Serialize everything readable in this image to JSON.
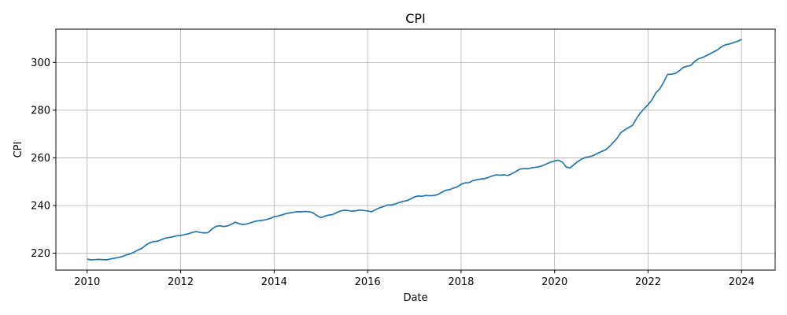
{
  "chart_data": {
    "type": "line",
    "title": "CPI",
    "xlabel": "Date",
    "ylabel": "CPI",
    "xlim": [
      2009.33,
      2024.72
    ],
    "ylim": [
      212.9,
      314.0
    ],
    "xticks": [
      2010,
      2012,
      2014,
      2016,
      2018,
      2020,
      2022,
      2024
    ],
    "yticks": [
      220,
      240,
      260,
      280,
      300
    ],
    "grid": true,
    "line_color": "#1f77b4",
    "series": [
      {
        "x": [
          2010.0,
          2010.083,
          2010.167,
          2010.25,
          2010.333,
          2010.417,
          2010.5,
          2010.583,
          2010.667,
          2010.75,
          2010.833,
          2010.917,
          2011.0,
          2011.083,
          2011.167,
          2011.25,
          2011.333,
          2011.417,
          2011.5,
          2011.583,
          2011.667,
          2011.75,
          2011.833,
          2011.917,
          2012.0,
          2012.083,
          2012.167,
          2012.25,
          2012.333,
          2012.417,
          2012.5,
          2012.583,
          2012.667,
          2012.75,
          2012.833,
          2012.917,
          2013.0,
          2013.083,
          2013.167,
          2013.25,
          2013.333,
          2013.417,
          2013.5,
          2013.583,
          2013.667,
          2013.75,
          2013.833,
          2013.917,
          2014.0,
          2014.083,
          2014.167,
          2014.25,
          2014.333,
          2014.417,
          2014.5,
          2014.583,
          2014.667,
          2014.75,
          2014.833,
          2014.917,
          2015.0,
          2015.083,
          2015.167,
          2015.25,
          2015.333,
          2015.417,
          2015.5,
          2015.583,
          2015.667,
          2015.75,
          2015.833,
          2015.917,
          2016.0,
          2016.083,
          2016.167,
          2016.25,
          2016.333,
          2016.417,
          2016.5,
          2016.583,
          2016.667,
          2016.75,
          2016.833,
          2016.917,
          2017.0,
          2017.083,
          2017.167,
          2017.25,
          2017.333,
          2017.417,
          2017.5,
          2017.583,
          2017.667,
          2017.75,
          2017.833,
          2017.917,
          2018.0,
          2018.083,
          2018.167,
          2018.25,
          2018.333,
          2018.417,
          2018.5,
          2018.583,
          2018.667,
          2018.75,
          2018.833,
          2018.917,
          2019.0,
          2019.083,
          2019.167,
          2019.25,
          2019.333,
          2019.417,
          2019.5,
          2019.583,
          2019.667,
          2019.75,
          2019.833,
          2019.917,
          2020.0,
          2020.083,
          2020.167,
          2020.25,
          2020.333,
          2020.417,
          2020.5,
          2020.583,
          2020.667,
          2020.75,
          2020.833,
          2020.917,
          2021.0,
          2021.083,
          2021.167,
          2021.25,
          2021.333,
          2021.417,
          2021.5,
          2021.583,
          2021.667,
          2021.75,
          2021.833,
          2021.917,
          2022.0,
          2022.083,
          2022.167,
          2022.25,
          2022.333,
          2022.417,
          2022.5,
          2022.583,
          2022.667,
          2022.75,
          2022.833,
          2022.917,
          2023.0,
          2023.083,
          2023.167,
          2023.25,
          2023.333,
          2023.417,
          2023.5,
          2023.583,
          2023.667,
          2023.75,
          2023.833,
          2023.917,
          2024.0
        ],
        "values": [
          217.5,
          217.2,
          217.3,
          217.4,
          217.3,
          217.2,
          217.6,
          217.9,
          218.2,
          218.6,
          219.2,
          219.7,
          220.4,
          221.3,
          222.0,
          223.3,
          224.3,
          224.9,
          225.0,
          225.6,
          226.3,
          226.6,
          226.9,
          227.3,
          227.4,
          227.8,
          228.2,
          228.7,
          229.1,
          228.7,
          228.5,
          228.6,
          230.1,
          231.2,
          231.5,
          231.2,
          231.4,
          232.1,
          233.0,
          232.4,
          232.0,
          232.3,
          232.8,
          233.3,
          233.6,
          233.8,
          234.1,
          234.6,
          235.3,
          235.6,
          236.1,
          236.6,
          236.9,
          237.2,
          237.4,
          237.4,
          237.5,
          237.4,
          236.9,
          235.8,
          234.9,
          235.5,
          236.0,
          236.2,
          237.0,
          237.7,
          238.0,
          237.9,
          237.6,
          237.8,
          238.1,
          237.9,
          237.7,
          237.4,
          238.2,
          239.0,
          239.5,
          240.2,
          240.2,
          240.6,
          241.2,
          241.7,
          242.0,
          242.7,
          243.6,
          244.0,
          243.9,
          244.2,
          244.1,
          244.2,
          244.6,
          245.5,
          246.4,
          246.6,
          247.3,
          247.8,
          248.9,
          249.5,
          249.6,
          250.4,
          250.8,
          251.1,
          251.3,
          251.8,
          252.4,
          252.9,
          252.7,
          252.9,
          252.6,
          253.3,
          254.2,
          255.2,
          255.5,
          255.4,
          255.8,
          256.0,
          256.3,
          256.8,
          257.5,
          258.2,
          258.7,
          259.0,
          258.2,
          256.1,
          255.8,
          257.2,
          258.5,
          259.5,
          260.2,
          260.5,
          261.0,
          261.9,
          262.6,
          263.3,
          264.6,
          266.4,
          268.1,
          270.6,
          271.7,
          272.7,
          273.6,
          276.4,
          278.8,
          280.6,
          282.3,
          284.3,
          287.3,
          288.9,
          291.7,
          295.0,
          295.1,
          295.4,
          296.5,
          297.9,
          298.4,
          298.8,
          300.5,
          301.6,
          302.1,
          302.9,
          303.7,
          304.6,
          305.5,
          306.8,
          307.5,
          307.8,
          308.4,
          308.9,
          309.7
        ]
      }
    ]
  }
}
